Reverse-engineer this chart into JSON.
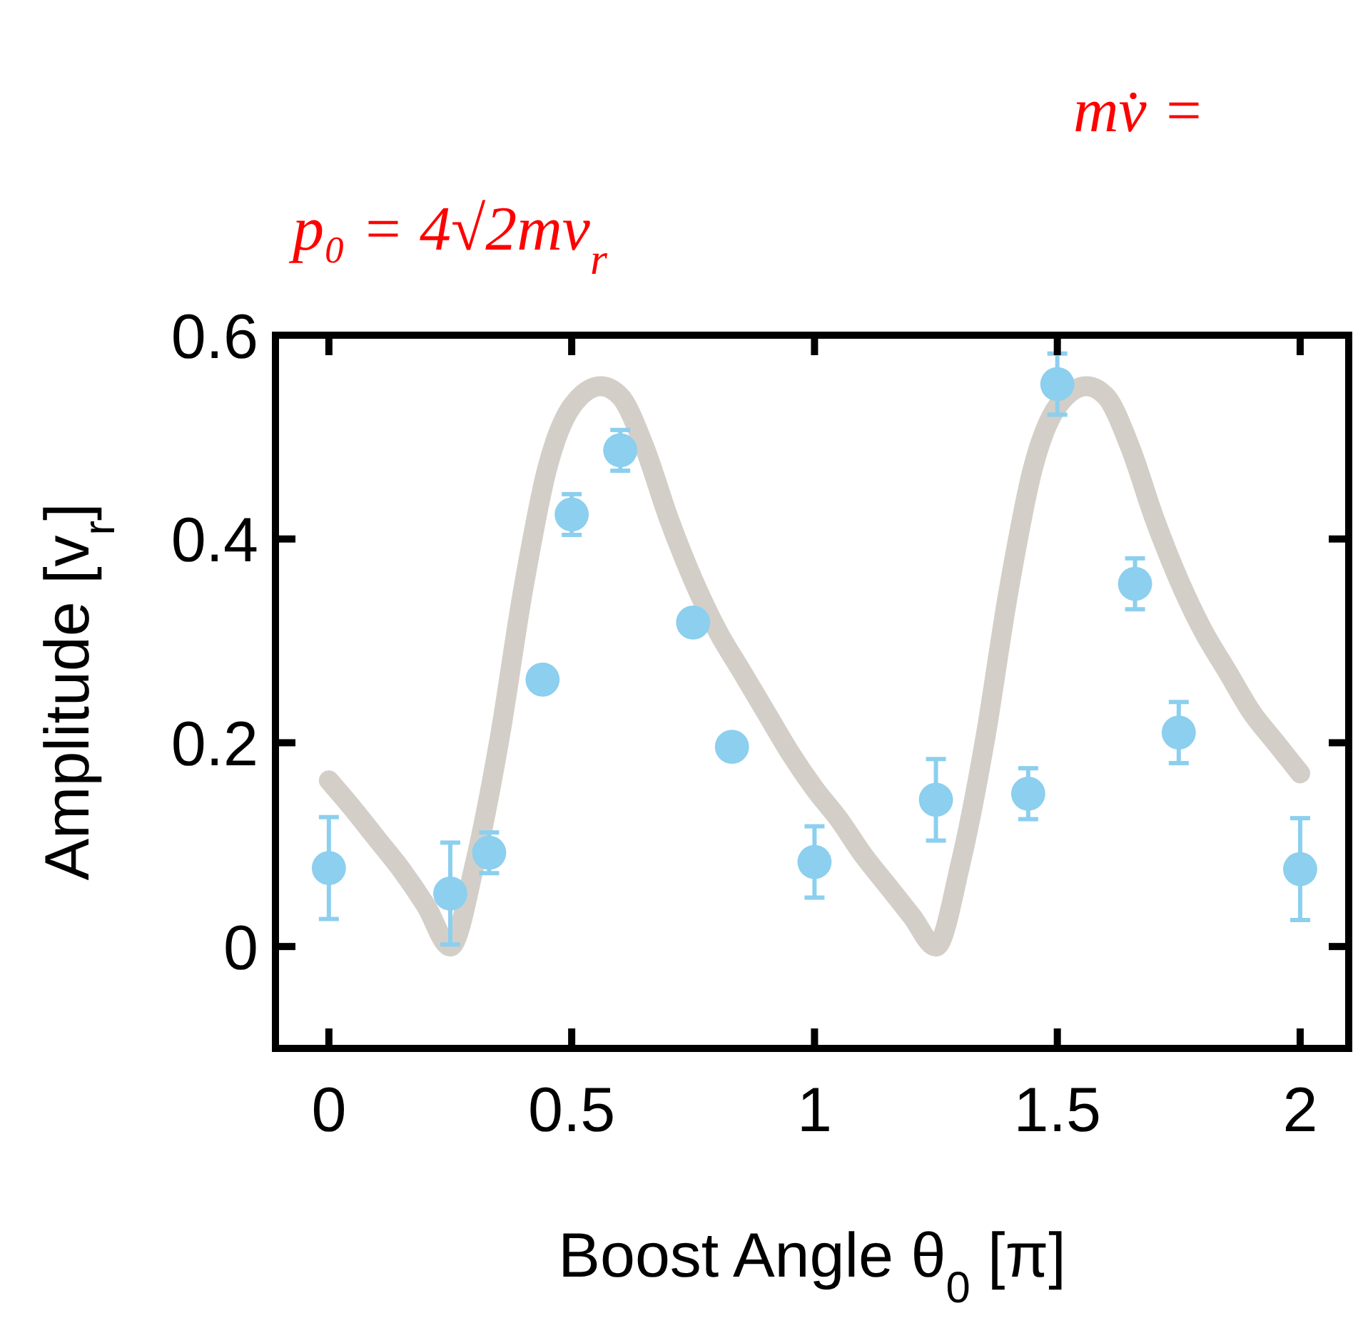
{
  "chart_data": {
    "type": "scatter",
    "xlabel": "Boost Angle θ$_{0}$ [π]",
    "ylabel": "Amplitude [v$_{r}$]",
    "annotations": [
      "p₀ = 4√2mv$_{r}$",
      "mv̇ ="
    ],
    "xlim": [
      -0.11,
      2.1
    ],
    "ylim": [
      -0.1,
      0.6
    ],
    "xticks": [
      0,
      0.5,
      1,
      1.5,
      2
    ],
    "yticks": [
      0,
      0.2,
      0.4,
      0.6
    ],
    "grid": false,
    "series": [
      {
        "type": "line",
        "color": "#d3cfc8",
        "line_style": "solid",
        "x": [
          0,
          0.05,
          0.1,
          0.15,
          0.2,
          0.25,
          0.3,
          0.35,
          0.4,
          0.45,
          0.5,
          0.56,
          0.6,
          0.65,
          0.7,
          0.75,
          0.8,
          0.85,
          0.9,
          0.95,
          1,
          1.05,
          1.1,
          1.15,
          1.2,
          1.25,
          1.3,
          1.35,
          1.4,
          1.45,
          1.5,
          1.56,
          1.6,
          1.65,
          1.7,
          1.75,
          1.8,
          1.85,
          1.9,
          1.95,
          2
        ],
        "values": [
          0.163,
          0.135,
          0.105,
          0.075,
          0.04,
          0,
          0.08,
          0.2,
          0.35,
          0.47,
          0.53,
          0.55,
          0.54,
          0.49,
          0.42,
          0.36,
          0.31,
          0.27,
          0.23,
          0.19,
          0.155,
          0.125,
          0.09,
          0.06,
          0.03,
          0,
          0.08,
          0.2,
          0.35,
          0.47,
          0.53,
          0.55,
          0.54,
          0.49,
          0.42,
          0.36,
          0.31,
          0.27,
          0.23,
          0.2,
          0.17
        ]
      },
      {
        "color": "#8ccfee",
        "marker": "circle",
        "x": [
          0,
          0.25,
          0.33,
          0.44,
          0.5,
          0.6,
          0.75,
          0.83,
          1,
          1.25,
          1.44,
          1.5,
          1.66,
          1.75,
          2
        ],
        "values": [
          0.077,
          0.052,
          0.092,
          0.262,
          0.424,
          0.487,
          0.318,
          0.196,
          0.083,
          0.144,
          0.15,
          0.552,
          0.356,
          0.21,
          0.076
        ],
        "errors": [
          0.05,
          0.05,
          0.02,
          0.01,
          0.02,
          0.02,
          null,
          0.01,
          0.035,
          0.04,
          0.025,
          0.03,
          0.025,
          0.03,
          0.05
        ]
      }
    ]
  }
}
